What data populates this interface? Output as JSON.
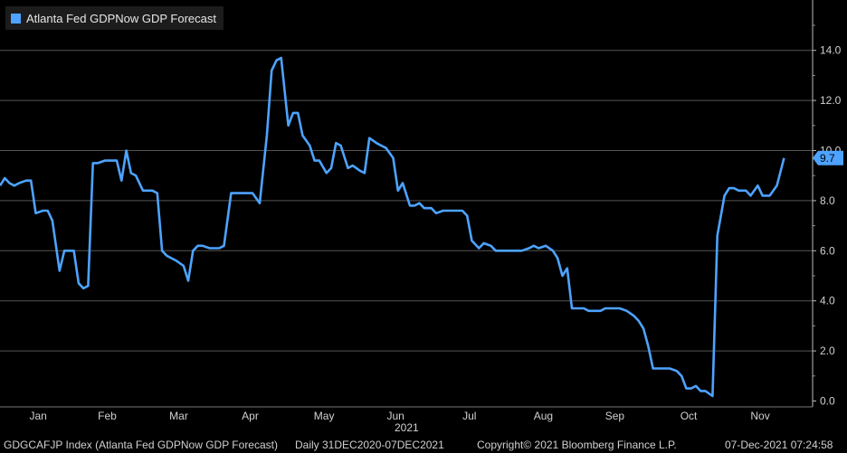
{
  "chart_data": {
    "type": "line",
    "legend": "Atlanta Fed GDPNow GDP Forecast",
    "series_color": "#4da3ff",
    "ylim": [
      0,
      16
    ],
    "yticks": [
      "0.0",
      "2.0",
      "4.0",
      "6.0",
      "8.0",
      "10.0",
      "12.0",
      "14.0"
    ],
    "ytick_values": [
      0,
      2,
      4,
      6,
      8,
      10,
      12,
      14
    ],
    "last_value_label": "9.7",
    "xlim": [
      "2020-12-31",
      "2021-12-07"
    ],
    "month_labels": [
      "Jan",
      "Feb",
      "Mar",
      "Apr",
      "May",
      "Jun",
      "Jul",
      "Aug",
      "Sep",
      "Oct",
      "Nov"
    ],
    "month_label_dates": [
      "2021-01-16",
      "2021-02-14",
      "2021-03-16",
      "2021-04-15",
      "2021-05-16",
      "2021-06-15",
      "2021-07-16",
      "2021-08-16",
      "2021-09-15",
      "2021-10-16",
      "2021-11-15"
    ],
    "year_label": "2021",
    "points": [
      [
        "2020-12-31",
        8.6
      ],
      [
        "2021-01-02",
        8.9
      ],
      [
        "2021-01-04",
        8.7
      ],
      [
        "2021-01-06",
        8.6
      ],
      [
        "2021-01-08",
        8.7
      ],
      [
        "2021-01-11",
        8.8
      ],
      [
        "2021-01-13",
        8.8
      ],
      [
        "2021-01-15",
        7.5
      ],
      [
        "2021-01-18",
        7.6
      ],
      [
        "2021-01-20",
        7.6
      ],
      [
        "2021-01-22",
        7.2
      ],
      [
        "2021-01-25",
        5.2
      ],
      [
        "2021-01-27",
        6.0
      ],
      [
        "2021-01-29",
        6.0
      ],
      [
        "2021-01-31",
        6.0
      ],
      [
        "2021-02-02",
        4.7
      ],
      [
        "2021-02-04",
        4.5
      ],
      [
        "2021-02-06",
        4.6
      ],
      [
        "2021-02-08",
        9.5
      ],
      [
        "2021-02-10",
        9.5
      ],
      [
        "2021-02-13",
        9.6
      ],
      [
        "2021-02-16",
        9.6
      ],
      [
        "2021-02-18",
        9.6
      ],
      [
        "2021-02-20",
        8.8
      ],
      [
        "2021-02-22",
        10.0
      ],
      [
        "2021-02-24",
        9.1
      ],
      [
        "2021-02-26",
        9.0
      ],
      [
        "2021-03-01",
        8.4
      ],
      [
        "2021-03-03",
        8.4
      ],
      [
        "2021-03-05",
        8.4
      ],
      [
        "2021-03-07",
        8.3
      ],
      [
        "2021-03-09",
        6.0
      ],
      [
        "2021-03-11",
        5.8
      ],
      [
        "2021-03-13",
        5.7
      ],
      [
        "2021-03-15",
        5.6
      ],
      [
        "2021-03-18",
        5.4
      ],
      [
        "2021-03-20",
        4.8
      ],
      [
        "2021-03-22",
        6.0
      ],
      [
        "2021-03-24",
        6.2
      ],
      [
        "2021-03-26",
        6.2
      ],
      [
        "2021-03-29",
        6.1
      ],
      [
        "2021-03-31",
        6.1
      ],
      [
        "2021-04-02",
        6.1
      ],
      [
        "2021-04-04",
        6.2
      ],
      [
        "2021-04-07",
        8.3
      ],
      [
        "2021-04-09",
        8.3
      ],
      [
        "2021-04-11",
        8.3
      ],
      [
        "2021-04-14",
        8.3
      ],
      [
        "2021-04-16",
        8.3
      ],
      [
        "2021-04-19",
        7.9
      ],
      [
        "2021-04-22",
        10.6
      ],
      [
        "2021-04-24",
        13.2
      ],
      [
        "2021-04-26",
        13.6
      ],
      [
        "2021-04-28",
        13.7
      ],
      [
        "2021-05-01",
        11.0
      ],
      [
        "2021-05-03",
        11.5
      ],
      [
        "2021-05-05",
        11.5
      ],
      [
        "2021-05-07",
        10.6
      ],
      [
        "2021-05-10",
        10.2
      ],
      [
        "2021-05-12",
        9.6
      ],
      [
        "2021-05-14",
        9.6
      ],
      [
        "2021-05-17",
        9.1
      ],
      [
        "2021-05-19",
        9.3
      ],
      [
        "2021-05-21",
        10.3
      ],
      [
        "2021-05-23",
        10.2
      ],
      [
        "2021-05-26",
        9.3
      ],
      [
        "2021-05-28",
        9.4
      ],
      [
        "2021-05-31",
        9.2
      ],
      [
        "2021-06-02",
        9.1
      ],
      [
        "2021-06-04",
        10.5
      ],
      [
        "2021-06-07",
        10.3
      ],
      [
        "2021-06-09",
        10.2
      ],
      [
        "2021-06-11",
        10.1
      ],
      [
        "2021-06-14",
        9.7
      ],
      [
        "2021-06-16",
        8.4
      ],
      [
        "2021-06-18",
        8.7
      ],
      [
        "2021-06-21",
        7.8
      ],
      [
        "2021-06-23",
        7.8
      ],
      [
        "2021-06-25",
        7.9
      ],
      [
        "2021-06-27",
        7.7
      ],
      [
        "2021-06-30",
        7.7
      ],
      [
        "2021-07-02",
        7.5
      ],
      [
        "2021-07-05",
        7.6
      ],
      [
        "2021-07-07",
        7.6
      ],
      [
        "2021-07-10",
        7.6
      ],
      [
        "2021-07-13",
        7.6
      ],
      [
        "2021-07-15",
        7.4
      ],
      [
        "2021-07-17",
        6.4
      ],
      [
        "2021-07-20",
        6.1
      ],
      [
        "2021-07-22",
        6.3
      ],
      [
        "2021-07-25",
        6.2
      ],
      [
        "2021-07-27",
        6.0
      ],
      [
        "2021-07-29",
        6.0
      ],
      [
        "2021-08-01",
        6.0
      ],
      [
        "2021-08-03",
        6.0
      ],
      [
        "2021-08-05",
        6.0
      ],
      [
        "2021-08-07",
        6.0
      ],
      [
        "2021-08-10",
        6.1
      ],
      [
        "2021-08-12",
        6.2
      ],
      [
        "2021-08-14",
        6.1
      ],
      [
        "2021-08-17",
        6.2
      ],
      [
        "2021-08-20",
        6.0
      ],
      [
        "2021-08-22",
        5.7
      ],
      [
        "2021-08-24",
        5.0
      ],
      [
        "2021-08-26",
        5.3
      ],
      [
        "2021-08-28",
        3.7
      ],
      [
        "2021-08-31",
        3.7
      ],
      [
        "2021-09-02",
        3.7
      ],
      [
        "2021-09-04",
        3.6
      ],
      [
        "2021-09-07",
        3.6
      ],
      [
        "2021-09-09",
        3.6
      ],
      [
        "2021-09-11",
        3.7
      ],
      [
        "2021-09-14",
        3.7
      ],
      [
        "2021-09-17",
        3.7
      ],
      [
        "2021-09-20",
        3.6
      ],
      [
        "2021-09-23",
        3.4
      ],
      [
        "2021-09-25",
        3.2
      ],
      [
        "2021-09-27",
        2.9
      ],
      [
        "2021-09-29",
        2.2
      ],
      [
        "2021-10-01",
        1.3
      ],
      [
        "2021-10-04",
        1.3
      ],
      [
        "2021-10-06",
        1.3
      ],
      [
        "2021-10-08",
        1.3
      ],
      [
        "2021-10-11",
        1.2
      ],
      [
        "2021-10-13",
        1.0
      ],
      [
        "2021-10-15",
        0.5
      ],
      [
        "2021-10-17",
        0.5
      ],
      [
        "2021-10-19",
        0.6
      ],
      [
        "2021-10-21",
        0.4
      ],
      [
        "2021-10-23",
        0.4
      ],
      [
        "2021-10-26",
        0.2
      ],
      [
        "2021-10-28",
        6.6
      ],
      [
        "2021-10-31",
        8.2
      ],
      [
        "2021-11-02",
        8.5
      ],
      [
        "2021-11-04",
        8.5
      ],
      [
        "2021-11-06",
        8.4
      ],
      [
        "2021-11-09",
        8.4
      ],
      [
        "2021-11-11",
        8.2
      ],
      [
        "2021-11-14",
        8.6
      ],
      [
        "2021-11-16",
        8.2
      ],
      [
        "2021-11-19",
        8.2
      ],
      [
        "2021-11-22",
        8.6
      ],
      [
        "2021-11-25",
        9.7
      ]
    ]
  },
  "footer": {
    "ticker": "GDGCAFJP Index (Atlanta Fed GDPNow GDP Forecast)",
    "range": "Daily 31DEC2020-07DEC2021",
    "copyright": "Copyright© 2021 Bloomberg Finance L.P.",
    "timestamp": "07-Dec-2021 07:24:58"
  }
}
